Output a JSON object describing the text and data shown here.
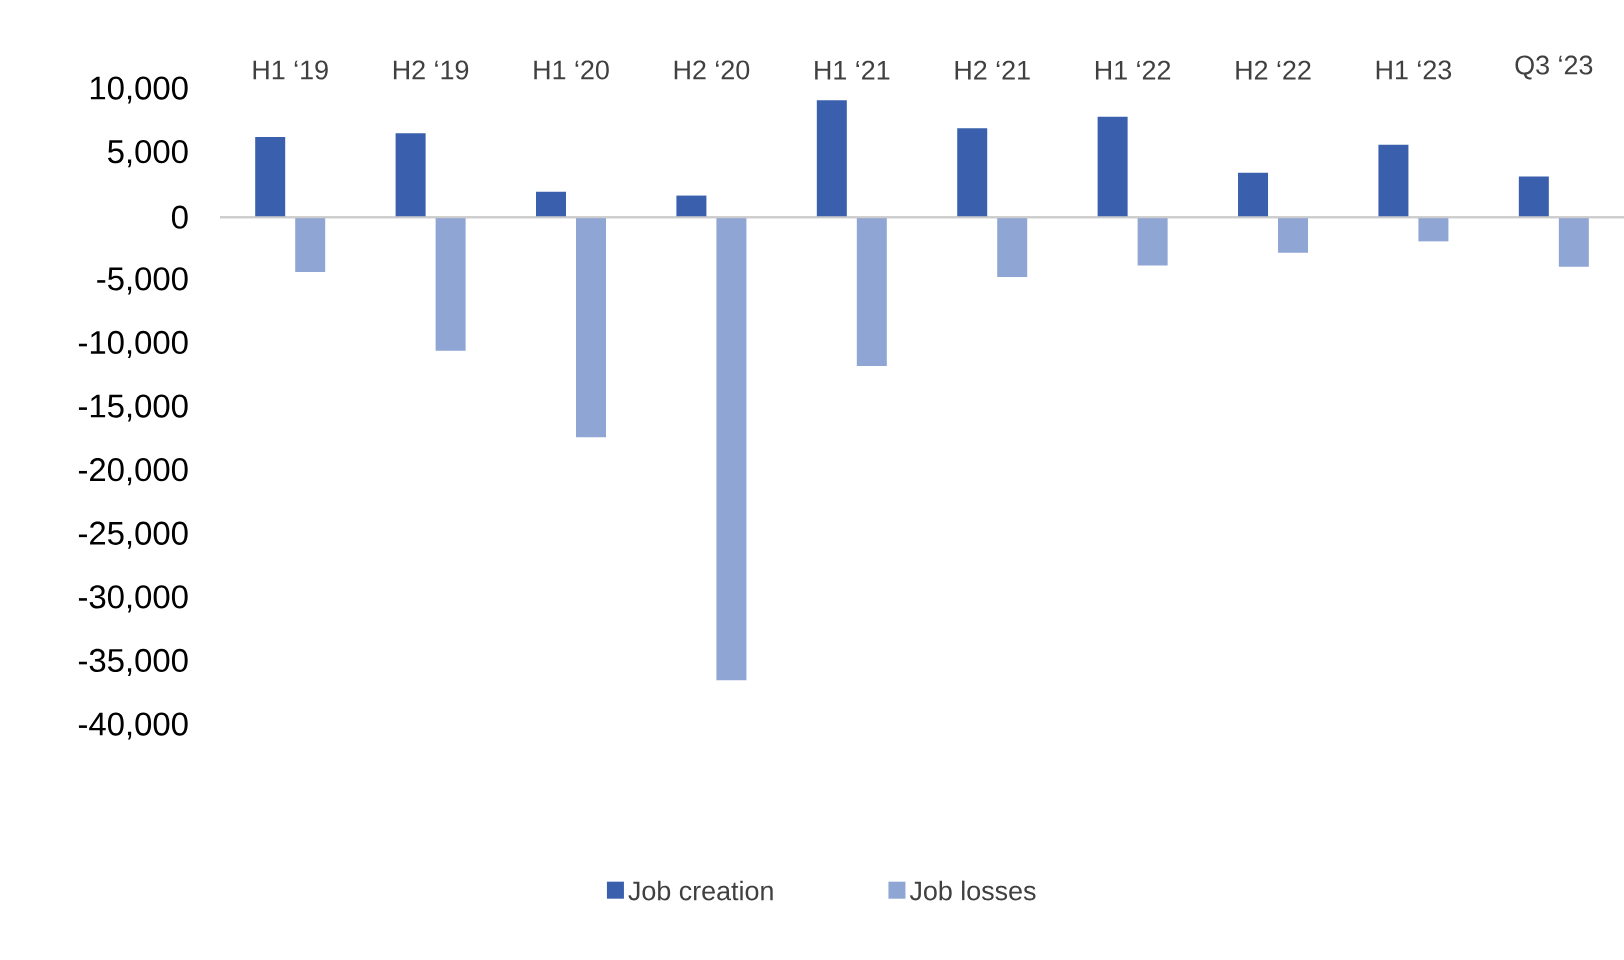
{
  "chart_data": {
    "type": "bar",
    "categories": [
      "H1 ‘19",
      "H2 ‘19",
      "H1 ‘20",
      "H2 ‘20",
      "H1 ‘21",
      "H2 ‘21",
      "H1 ‘22",
      "H2 ‘22",
      "H1 ‘23",
      "Q3 ‘23"
    ],
    "series": [
      {
        "name": "Job creation",
        "color": "#3a5fad",
        "values": [
          6300,
          6600,
          2000,
          1700,
          9200,
          7000,
          7900,
          3500,
          5700,
          3200
        ]
      },
      {
        "name": "Job losses",
        "color": "#8fa5d4",
        "values": [
          -4300,
          -10500,
          -17300,
          -36400,
          -11700,
          -4700,
          -3800,
          -2800,
          -1900,
          -3900
        ]
      }
    ],
    "ylim": [
      -40000,
      10000
    ],
    "yticks": [
      {
        "value": 10000,
        "label": "10,000"
      },
      {
        "value": 5000,
        "label": "5,000"
      },
      {
        "value": 0,
        "label": "0"
      },
      {
        "value": -5000,
        "label": "-5,000"
      },
      {
        "value": -10000,
        "label": "-10,000"
      },
      {
        "value": -15000,
        "label": "-15,000"
      },
      {
        "value": -20000,
        "label": "-20,000"
      },
      {
        "value": -25000,
        "label": "-25,000"
      },
      {
        "value": -30000,
        "label": "-30,000"
      },
      {
        "value": -35000,
        "label": "-35,000"
      },
      {
        "value": -40000,
        "label": "-40,000"
      }
    ],
    "legend": "bottom"
  }
}
